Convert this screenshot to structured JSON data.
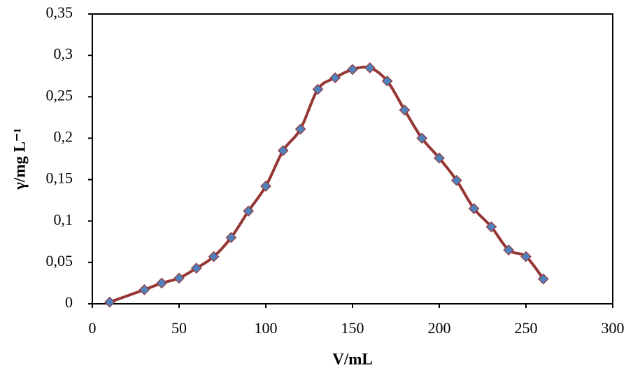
{
  "chart_data": {
    "type": "line",
    "x_label": "V/mL",
    "y_label": "γ/mg L⁻¹",
    "x": [
      10,
      30,
      40,
      50,
      60,
      70,
      80,
      90,
      100,
      110,
      120,
      130,
      140,
      150,
      160,
      170,
      180,
      190,
      200,
      210,
      220,
      230,
      240,
      250,
      260
    ],
    "series": [
      {
        "color": "#953735",
        "marker_color": "#4f81bd",
        "values": [
          0.002,
          0.017,
          0.025,
          0.031,
          0.043,
          0.057,
          0.08,
          0.112,
          0.142,
          0.185,
          0.211,
          0.259,
          0.273,
          0.283,
          0.285,
          0.269,
          0.234,
          0.2,
          0.176,
          0.149,
          0.115,
          0.093,
          0.065,
          0.057,
          0.03
        ]
      }
    ],
    "xlim": [
      0,
      300
    ],
    "xticks": [
      0,
      50,
      100,
      150,
      200,
      250,
      300
    ],
    "ylim": [
      0,
      0.35
    ],
    "yticks": [
      0,
      {
        "value": 0.05,
        "label": "0,05"
      },
      {
        "value": 0.1,
        "label": "0,1"
      },
      {
        "value": 0.15,
        "label": "0,15"
      },
      {
        "value": 0.2,
        "label": "0,2"
      },
      {
        "value": 0.25,
        "label": "0,25"
      },
      {
        "value": 0.3,
        "label": "0,3"
      },
      {
        "value": 0.35,
        "label": "0,35"
      }
    ],
    "grid": false
  }
}
